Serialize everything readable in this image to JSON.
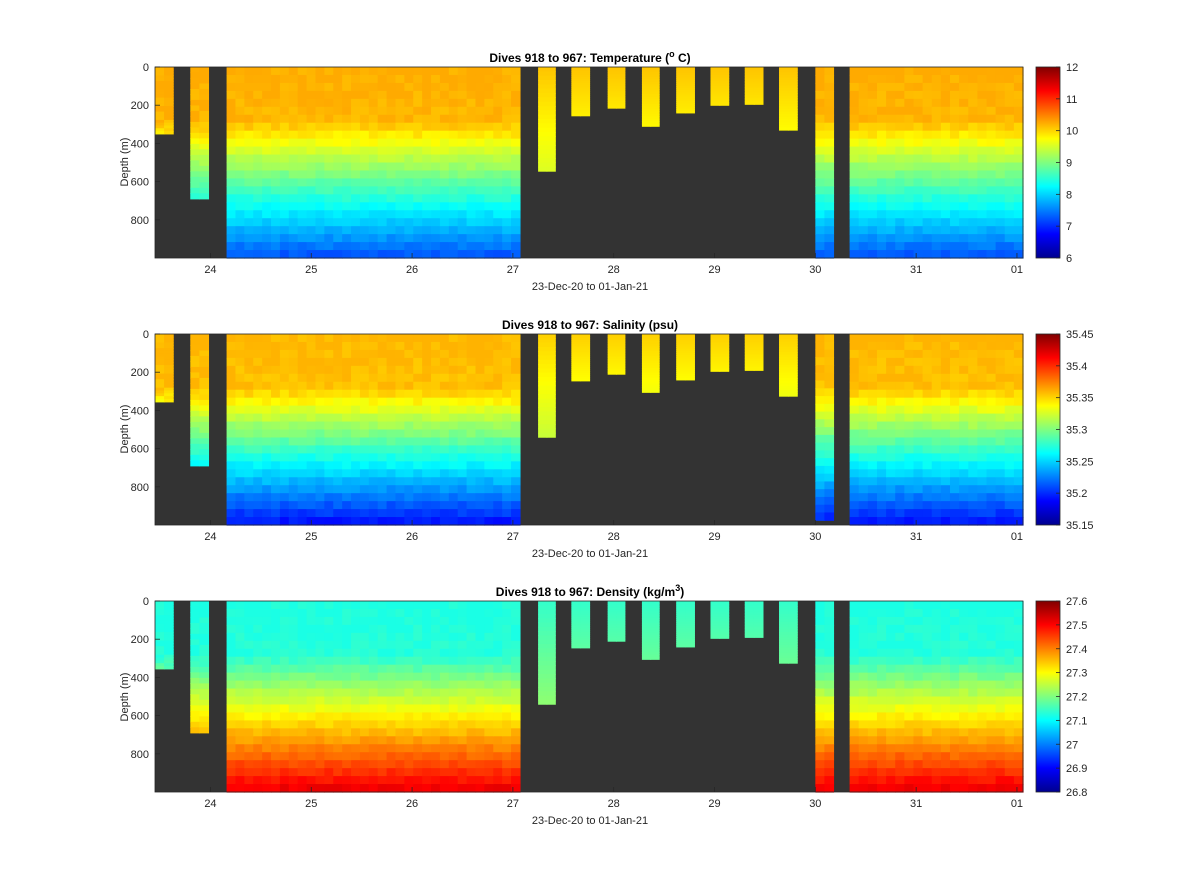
{
  "chart_data": [
    {
      "type": "heatmap",
      "title": "Dives 918 to 967: Temperature (° C)",
      "title_main": "Dives 918 to 967: Temperature (",
      "title_sup": "o",
      "title_tail": " C)",
      "ylabel": "Depth (m)",
      "xlabel": "23-Dec-20 to 01-Jan-21",
      "x_range_days": [
        23.45,
        32.06
      ],
      "ylim": [
        0,
        1000
      ],
      "y_reversed": true,
      "yticks": [
        "0",
        "200",
        "400",
        "600",
        "800"
      ],
      "xticks": [
        "24",
        "25",
        "26",
        "27",
        "28",
        "29",
        "30",
        "31",
        "01"
      ],
      "colorbar": {
        "min": 6,
        "max": 12,
        "colormap": "jet",
        "ticks": [
          "6",
          "7",
          "8",
          "9",
          "10",
          "11",
          "12"
        ]
      },
      "profiles_depth_m": [
        350,
        690,
        1000,
        545,
        255,
        215,
        310,
        240,
        200,
        195,
        330,
        1000,
        1000
      ],
      "profile_day": [
        23.6,
        23.93,
        26.0,
        27.33,
        27.72,
        28.05,
        28.4,
        28.75,
        29.05,
        29.37,
        29.75,
        30.1,
        31.2
      ],
      "value_surface": 10.25,
      "value_deep": 7.2
    },
    {
      "type": "heatmap",
      "title": "Dives 918 to 967: Salinity (psu)",
      "title_main": "Dives 918 to 967: Salinity (psu)",
      "ylabel": "Depth (m)",
      "xlabel": "23-Dec-20 to 01-Jan-21",
      "x_range_days": [
        23.45,
        32.06
      ],
      "ylim": [
        0,
        1000
      ],
      "y_reversed": true,
      "yticks": [
        "0",
        "200",
        "400",
        "600",
        "800"
      ],
      "xticks": [
        "24",
        "25",
        "26",
        "27",
        "28",
        "29",
        "30",
        "31",
        "01"
      ],
      "colorbar": {
        "min": 35.15,
        "max": 35.45,
        "colormap": "jet",
        "ticks": [
          "35.15",
          "35.2",
          "35.25",
          "35.3",
          "35.35",
          "35.4",
          "35.45"
        ]
      },
      "profiles_depth_m": [
        355,
        690,
        1000,
        540,
        245,
        210,
        305,
        240,
        195,
        190,
        325,
        975,
        1000
      ],
      "profile_day": [
        23.6,
        23.93,
        26.0,
        27.33,
        27.72,
        28.05,
        28.4,
        28.75,
        29.05,
        29.37,
        29.75,
        30.1,
        31.2
      ],
      "value_surface": 35.36,
      "value_deep": 35.19
    },
    {
      "type": "heatmap",
      "title": "Dives 918 to 967: Density (kg/m³)",
      "title_main": "Dives 918 to 967: Density (kg/m",
      "title_sup": "3",
      "title_tail": ")",
      "ylabel": "Depth (m)",
      "xlabel": "23-Dec-20 to 01-Jan-21",
      "x_range_days": [
        23.45,
        32.06
      ],
      "ylim": [
        0,
        1000
      ],
      "y_reversed": true,
      "yticks": [
        "0",
        "200",
        "400",
        "600",
        "800"
      ],
      "xticks": [
        "24",
        "25",
        "26",
        "27",
        "28",
        "29",
        "30",
        "31",
        "01"
      ],
      "colorbar": {
        "min": 26.8,
        "max": 27.6,
        "colormap": "jet",
        "ticks": [
          "26.8",
          "26.9",
          "27",
          "27.1",
          "27.2",
          "27.3",
          "27.4",
          "27.5",
          "27.6"
        ]
      },
      "profiles_depth_m": [
        355,
        690,
        1000,
        540,
        245,
        210,
        305,
        240,
        195,
        190,
        325,
        1000,
        1000
      ],
      "profile_day": [
        23.6,
        23.93,
        26.0,
        27.33,
        27.72,
        28.05,
        28.4,
        28.75,
        29.05,
        29.37,
        29.75,
        30.1,
        31.2
      ],
      "value_surface": 27.12,
      "value_deep": 27.52
    }
  ],
  "colors": {
    "background_missing": "#333333",
    "axis": "#262626"
  }
}
